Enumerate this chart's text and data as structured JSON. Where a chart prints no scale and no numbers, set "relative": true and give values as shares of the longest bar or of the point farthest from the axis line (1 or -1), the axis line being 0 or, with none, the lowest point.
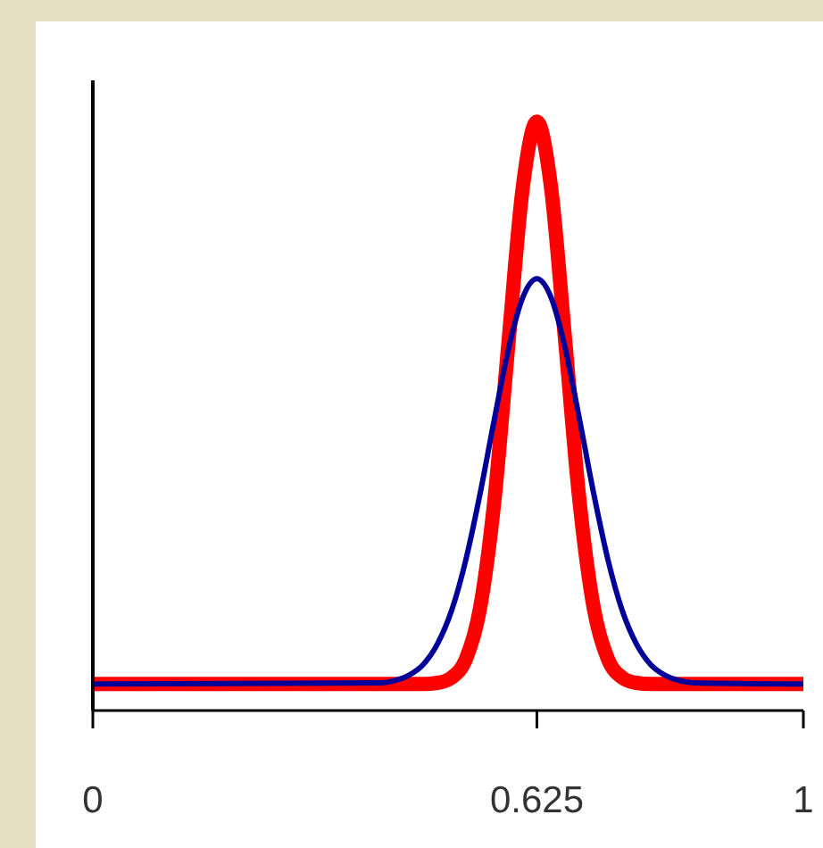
{
  "chart_data": {
    "type": "line",
    "relative": true,
    "x": [
      0,
      0.405,
      0.425,
      0.445,
      0.465,
      0.485,
      0.505,
      0.525,
      0.545,
      0.565,
      0.585,
      0.605,
      0.625,
      0.645,
      0.665,
      0.685,
      0.705,
      0.725,
      0.745,
      0.765,
      0.785,
      0.805,
      0.825,
      0.845,
      1
    ],
    "xlim": [
      0,
      1
    ],
    "xticks": [
      0,
      0.625,
      1
    ],
    "grid": false,
    "legend": false,
    "marker": "none",
    "line_style": "solid",
    "series": [
      {
        "color": "#ff0000",
        "values": [
          0.045,
          0.045,
          0.045,
          0.045,
          0.045,
          0.047,
          0.056,
          0.087,
          0.174,
          0.355,
          0.625,
          0.887,
          1,
          0.887,
          0.625,
          0.355,
          0.174,
          0.087,
          0.056,
          0.047,
          0.045,
          0.045,
          0.045,
          0.045,
          0.045
        ]
      },
      {
        "color": "#000099",
        "values": [
          0.045,
          0.047,
          0.051,
          0.06,
          0.078,
          0.113,
          0.17,
          0.256,
          0.368,
          0.494,
          0.614,
          0.701,
          0.733,
          0.701,
          0.614,
          0.494,
          0.368,
          0.256,
          0.17,
          0.113,
          0.078,
          0.06,
          0.051,
          0.047,
          0.045
        ]
      }
    ]
  }
}
